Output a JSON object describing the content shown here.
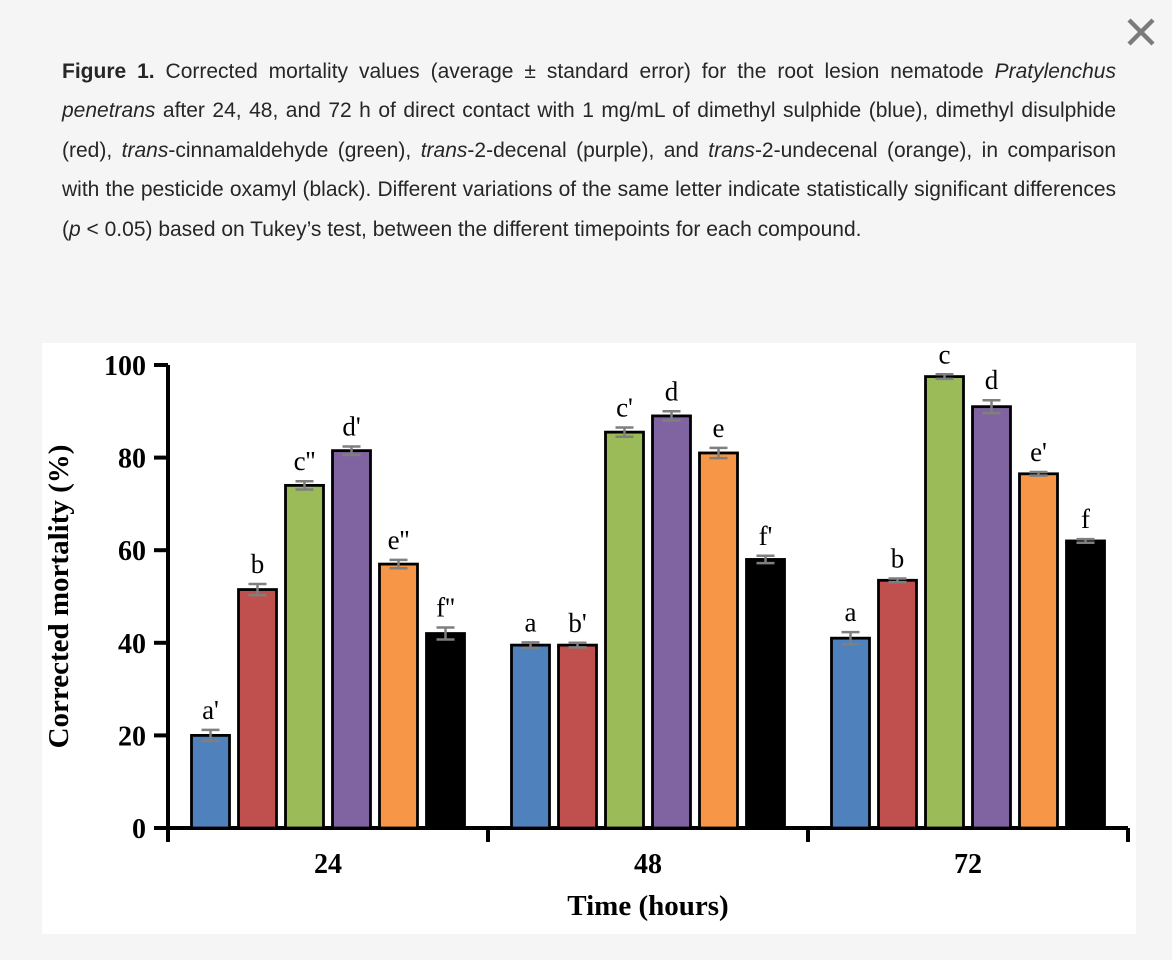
{
  "close_button": {
    "icon": "close-x",
    "color": "#7b7b7b"
  },
  "caption": {
    "segments": [
      {
        "text": "Figure 1. ",
        "bold": true
      },
      {
        "text": "Corrected mortality values (average ± standard error) for the root lesion nematode "
      },
      {
        "text": "Pratylenchus penetrans",
        "italic": true
      },
      {
        "text": " after 24, 48, and 72 h of direct contact with 1 mg/mL of dimethyl sulphide (blue), dimethyl disulphide (red), "
      },
      {
        "text": "trans",
        "italic": true
      },
      {
        "text": "-cinnamaldehyde (green), "
      },
      {
        "text": "trans",
        "italic": true
      },
      {
        "text": "-2-decenal (purple), and "
      },
      {
        "text": "trans",
        "italic": true
      },
      {
        "text": "-2-undecenal (orange), in comparison with the pesticide oxamyl (black). Different variations of the same letter indicate statistically significant differences ("
      },
      {
        "text": "p",
        "italic": true
      },
      {
        "text": " < 0.05) based on Tukey’s test, between the different timepoints for each compound."
      }
    ]
  },
  "chart_data": {
    "type": "bar",
    "title": "",
    "xlabel": "Time (hours)",
    "ylabel": "Corrected mortality (%)",
    "ylim": [
      0,
      100
    ],
    "yticks": [
      0,
      20,
      40,
      60,
      80,
      100
    ],
    "categories": [
      "24",
      "48",
      "72"
    ],
    "grid": false,
    "legend_position": "none",
    "error_color": "#7f7f7f",
    "series": [
      {
        "name": "dimethyl sulphide",
        "color": "#4F81BD",
        "values": [
          20.0,
          39.5,
          41.0
        ],
        "errors": [
          1.2,
          0.6,
          1.3
        ],
        "letters": [
          "a'",
          "a",
          "a"
        ]
      },
      {
        "name": "dimethyl disulphide",
        "color": "#C0504D",
        "values": [
          51.5,
          39.5,
          53.5
        ],
        "errors": [
          1.2,
          0.5,
          0.4
        ],
        "letters": [
          "b",
          "b'",
          "b"
        ]
      },
      {
        "name": "trans-cinnamaldehyde",
        "color": "#9BBB59",
        "values": [
          74.0,
          85.5,
          97.5
        ],
        "errors": [
          0.9,
          1.0,
          0.5
        ],
        "letters": [
          "c''",
          "c'",
          "c"
        ]
      },
      {
        "name": "trans-2-decenal",
        "color": "#8064A2",
        "values": [
          81.5,
          89.0,
          91.0
        ],
        "errors": [
          0.9,
          1.0,
          1.4
        ],
        "letters": [
          "d'",
          "d",
          "d"
        ]
      },
      {
        "name": "trans-2-undecenal",
        "color": "#F79646",
        "values": [
          57.0,
          81.0,
          76.5
        ],
        "errors": [
          0.9,
          1.1,
          0.4
        ],
        "letters": [
          "e''",
          "e",
          "e'"
        ]
      },
      {
        "name": "oxamyl",
        "color": "#000000",
        "values": [
          42.0,
          58.0,
          62.0
        ],
        "errors": [
          1.3,
          0.8,
          0.4
        ],
        "letters": [
          "f''",
          "f'",
          "f"
        ]
      }
    ]
  }
}
